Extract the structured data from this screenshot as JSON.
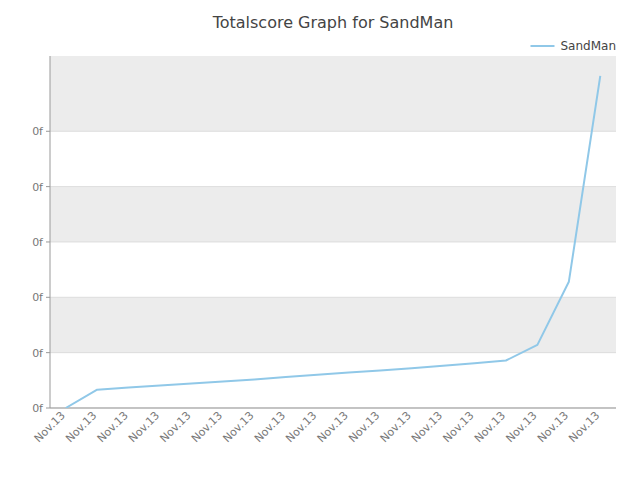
{
  "chart_data": {
    "type": "line",
    "title": "Totalscore Graph for SandMan",
    "categories": [
      "Nov.13",
      "Nov.13",
      "Nov.13",
      "Nov.13",
      "Nov.13",
      "Nov.13",
      "Nov.13",
      "Nov.13",
      "Nov.13",
      "Nov.13",
      "Nov.13",
      "Nov.13",
      "Nov.13",
      "Nov.13",
      "Nov.13",
      "Nov.13",
      "Nov.13",
      "Nov.13"
    ],
    "series": [
      {
        "name": "SandMan",
        "color": "#90C8E8",
        "values": [
          0,
          0.055,
          0.062,
          0.068,
          0.074,
          0.08,
          0.086,
          0.093,
          0.1,
          0.107,
          0.113,
          0.12,
          0.127,
          0.135,
          0.143,
          0.19,
          0.38,
          1.0
        ]
      }
    ],
    "ylim": [
      0,
      1.06
    ],
    "yticks": [
      {
        "value": 0,
        "label": "0f"
      },
      {
        "value": 0.16666666666666666,
        "label": "0f"
      },
      {
        "value": 0.3333333333333333,
        "label": "0f"
      },
      {
        "value": 0.5,
        "label": "0f"
      },
      {
        "value": 0.6666666666666666,
        "label": "0f"
      },
      {
        "value": 0.8333333333333333,
        "label": "0f"
      }
    ],
    "grid": true,
    "legend": "upper right"
  }
}
